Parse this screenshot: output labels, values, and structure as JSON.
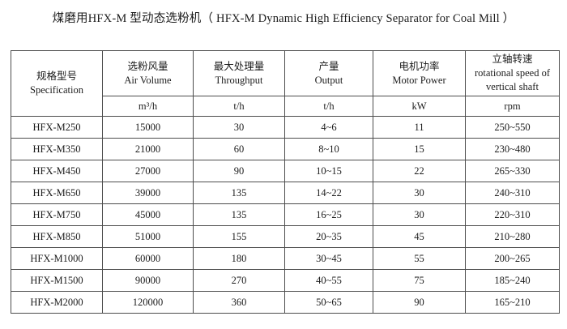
{
  "page": {
    "title": "煤磨用HFX-M 型动态选粉机（ HFX-M Dynamic High Efficiency Separator for Coal Mill ）"
  },
  "colors": {
    "text": "#1c1c1c",
    "border": "#4d4d4d",
    "background": "#ffffff"
  },
  "table": {
    "columns": [
      {
        "zh": "规格型号",
        "en": "Specification",
        "unit": ""
      },
      {
        "zh": "选粉风量",
        "en": "Air Volume",
        "unit": "m³/h"
      },
      {
        "zh": "最大处理量",
        "en": "Throughput",
        "unit": "t/h"
      },
      {
        "zh": "产量",
        "en": "Output",
        "unit": "t/h"
      },
      {
        "zh": "电机功率",
        "en": "Motor Power",
        "unit": "kW"
      },
      {
        "zh": "立轴转速",
        "en": "rotational speed of vertical shaft",
        "unit": "rpm"
      }
    ],
    "rows": [
      [
        "HFX-M250",
        "15000",
        "30",
        "4~6",
        "11",
        "250~550"
      ],
      [
        "HFX-M350",
        "21000",
        "60",
        "8~10",
        "15",
        "230~480"
      ],
      [
        "HFX-M450",
        "27000",
        "90",
        "10~15",
        "22",
        "265~330"
      ],
      [
        "HFX-M650",
        "39000",
        "135",
        "14~22",
        "30",
        "240~310"
      ],
      [
        "HFX-M750",
        "45000",
        "135",
        "16~25",
        "30",
        "220~310"
      ],
      [
        "HFX-M850",
        "51000",
        "155",
        "20~35",
        "45",
        "210~280"
      ],
      [
        "HFX-M1000",
        "60000",
        "180",
        "30~45",
        "55",
        "200~265"
      ],
      [
        "HFX-M1500",
        "90000",
        "270",
        "40~55",
        "75",
        "185~240"
      ],
      [
        "HFX-M2000",
        "120000",
        "360",
        "50~65",
        "90",
        "165~210"
      ]
    ]
  }
}
